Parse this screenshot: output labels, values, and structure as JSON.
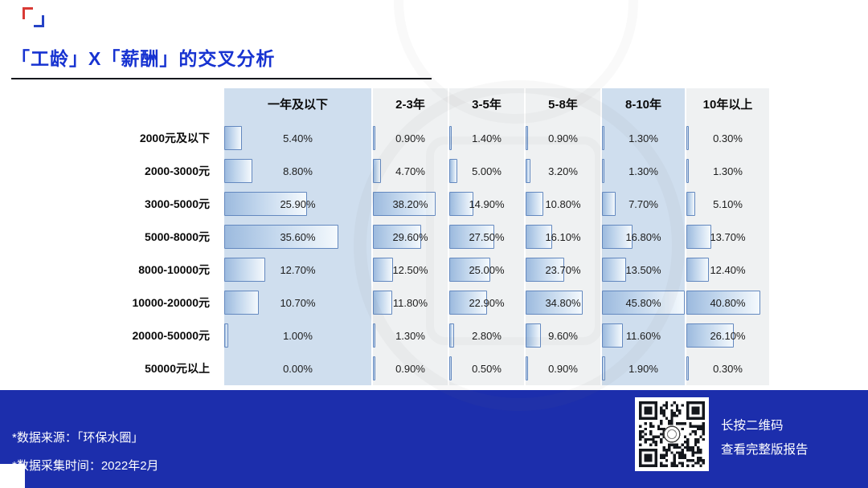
{
  "header": {
    "title": "「工龄」X「薪酬」的交叉分析"
  },
  "chart_data": {
    "type": "table",
    "title": "「工龄」X「薪酬」的交叉分析",
    "note": "horizontal proportion bars inside each cell, length proportional to percentage",
    "columns": [
      "一年及以下",
      "2-3年",
      "3-5年",
      "5-8年",
      "8-10年",
      "10年以上"
    ],
    "highlight_columns": [
      0,
      4
    ],
    "rows": [
      "2000元及以下",
      "2000-3000元",
      "3000-5000元",
      "5000-8000元",
      "8000-10000元",
      "10000-20000元",
      "20000-50000元",
      "50000元以上"
    ],
    "values": [
      [
        5.4,
        0.9,
        1.4,
        0.9,
        1.3,
        0.3
      ],
      [
        8.8,
        4.7,
        5.0,
        3.2,
        1.3,
        1.3
      ],
      [
        25.9,
        38.2,
        14.9,
        10.8,
        7.7,
        5.1
      ],
      [
        35.6,
        29.6,
        27.5,
        16.1,
        16.8,
        13.7
      ],
      [
        12.7,
        12.5,
        25.0,
        23.7,
        13.5,
        12.4
      ],
      [
        10.7,
        11.8,
        22.9,
        34.8,
        45.8,
        40.8
      ],
      [
        1.0,
        1.3,
        2.8,
        9.6,
        11.6,
        26.1
      ],
      [
        0.0,
        0.9,
        0.5,
        0.9,
        1.9,
        0.3
      ]
    ],
    "unit": "%",
    "bar_scale_max": 45.8
  },
  "footer": {
    "source": "*数据来源：「环保水圈」",
    "time": "*数据采集时间：2022年2月",
    "qr_line1": "长按二维码",
    "qr_line2": "查看完整版报告"
  },
  "colors": {
    "title": "#1733d1",
    "footer_bg": "#1c2eac",
    "highlight_band": "#cfdeee",
    "column_band": "#eff1f2",
    "bar_border": "#6388bf",
    "bar_fill_start": "#9cbade",
    "bar_fill_end": "#f4f9fd",
    "logo_red": "#d93a35",
    "logo_blue": "#2643c6"
  }
}
